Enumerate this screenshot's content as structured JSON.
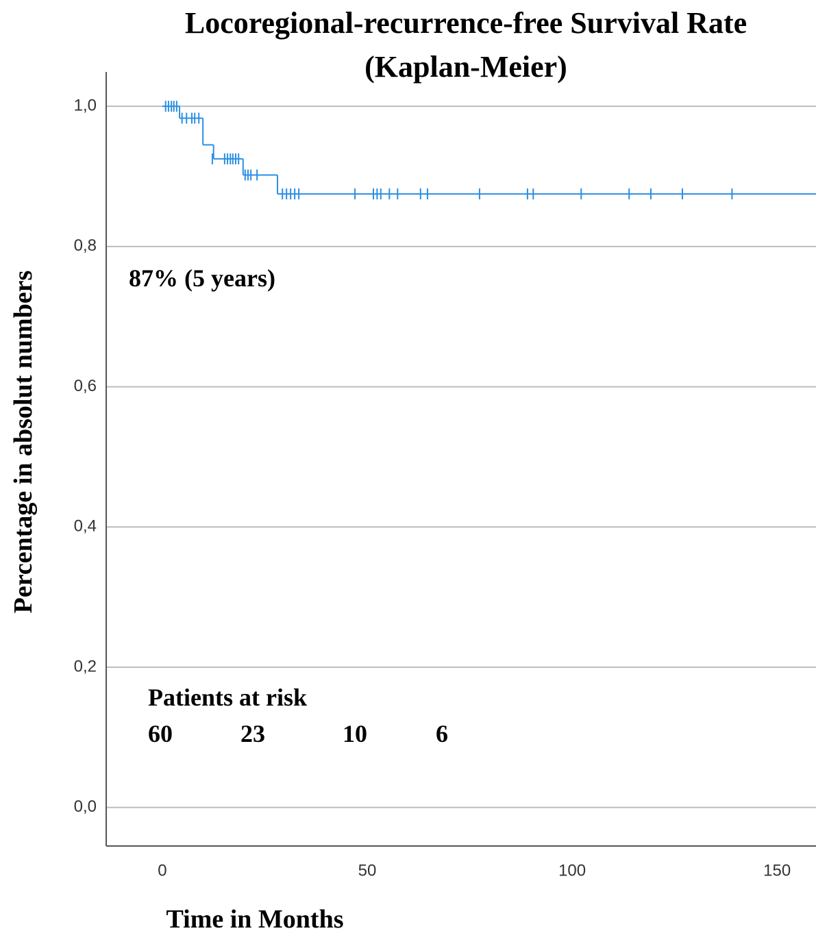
{
  "chart_data": {
    "type": "kaplan-meier",
    "title": [
      "Locoregional-recurrence-free Survival Rate",
      "(Kaplan-Meier)"
    ],
    "x_label": "Time in Months",
    "y_label": "Percentage in absolut numbers",
    "annotation": "87% (5 years)",
    "at_risk": {
      "label": "Patients at risk",
      "values": [
        60,
        23,
        10,
        6
      ]
    },
    "color": "#2b8fe3",
    "grid": true,
    "xlim": [
      -13.7,
      159.5
    ],
    "ylim": [
      -0.055,
      1.049
    ],
    "xticks": [
      0,
      50,
      100,
      150
    ],
    "yticks": [
      {
        "value": 0,
        "label": "0,0"
      },
      {
        "value": 0.2,
        "label": "0,2"
      },
      {
        "value": 0.4,
        "label": "0,4"
      },
      {
        "value": 0.6,
        "label": "0,6"
      },
      {
        "value": 0.8,
        "label": "0,8"
      },
      {
        "value": 1,
        "label": "1,0"
      }
    ],
    "x": [
      0,
      4.2,
      9.9,
      12.5,
      19.7,
      28.1
    ],
    "values": [
      1,
      0.983,
      0.945,
      0.925,
      0.902,
      0.875
    ],
    "censored": {
      "x": [
        0.8,
        1.5,
        2.2,
        2.8,
        3.5,
        4.8,
        5.9,
        7.2,
        7.9,
        8.9,
        12.2,
        15.2,
        15.9,
        16.6,
        17.2,
        17.9,
        18.6,
        20.2,
        20.9,
        21.6,
        23.1,
        29.3,
        30.3,
        31.3,
        32.3,
        33.3,
        47.0,
        51.5,
        52.4,
        53.3,
        55.4,
        57.4,
        63.0,
        64.7,
        77.4,
        89.1,
        90.5,
        102.2,
        113.9,
        119.2,
        126.9,
        139.0
      ],
      "values": [
        1,
        1,
        1,
        1,
        1,
        0.983,
        0.983,
        0.983,
        0.983,
        0.983,
        0.925,
        0.925,
        0.925,
        0.925,
        0.925,
        0.925,
        0.925,
        0.902,
        0.902,
        0.902,
        0.902,
        0.875,
        0.875,
        0.875,
        0.875,
        0.875,
        0.875,
        0.875,
        0.875,
        0.875,
        0.875,
        0.875,
        0.875,
        0.875,
        0.875,
        0.875,
        0.875,
        0.875,
        0.875,
        0.875,
        0.875,
        0.875
      ]
    }
  }
}
